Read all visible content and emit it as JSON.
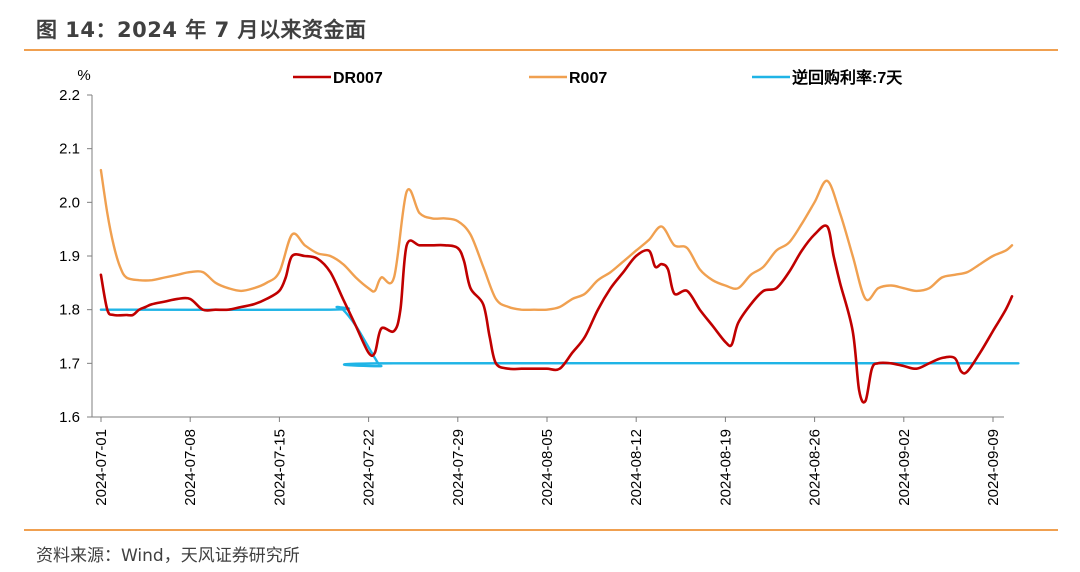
{
  "figure": {
    "title": "图 14：2024 年 7 月以来资金面",
    "source": "资料来源：Wind，天风证券研究所"
  },
  "chart_data": {
    "type": "line",
    "ylabel": "%",
    "ylim": [
      1.6,
      2.2
    ],
    "yticks": [
      "1.6",
      "1.7",
      "1.8",
      "1.9",
      "2.0",
      "2.1",
      "2.2"
    ],
    "xticks": [
      "2024-07-01",
      "2024-07-08",
      "2024-07-15",
      "2024-07-22",
      "2024-07-29",
      "2024-08-05",
      "2024-08-12",
      "2024-08-19",
      "2024-08-26",
      "2024-09-02",
      "2024-09-09"
    ],
    "x_range_days": [
      0,
      72
    ],
    "legend_position": "top",
    "series": [
      {
        "name": "DR007",
        "color": "#c00000",
        "points": [
          [
            0,
            1.865
          ],
          [
            0.5,
            1.8
          ],
          [
            1,
            1.79
          ],
          [
            2,
            1.79
          ],
          [
            2.5,
            1.79
          ],
          [
            3,
            1.8
          ],
          [
            3.5,
            1.805
          ],
          [
            4,
            1.81
          ],
          [
            5,
            1.815
          ],
          [
            6,
            1.82
          ],
          [
            7,
            1.82
          ],
          [
            8,
            1.8
          ],
          [
            9,
            1.8
          ],
          [
            10,
            1.8
          ],
          [
            11,
            1.805
          ],
          [
            12,
            1.81
          ],
          [
            13,
            1.82
          ],
          [
            14,
            1.835
          ],
          [
            14.5,
            1.86
          ],
          [
            15,
            1.9
          ],
          [
            16,
            1.9
          ],
          [
            17,
            1.895
          ],
          [
            18,
            1.87
          ],
          [
            19,
            1.82
          ],
          [
            20,
            1.77
          ],
          [
            21,
            1.72
          ],
          [
            21.5,
            1.72
          ],
          [
            22,
            1.765
          ],
          [
            23,
            1.76
          ],
          [
            23.5,
            1.8
          ],
          [
            24,
            1.92
          ],
          [
            25,
            1.92
          ],
          [
            26,
            1.92
          ],
          [
            27,
            1.92
          ],
          [
            28,
            1.915
          ],
          [
            28.5,
            1.89
          ],
          [
            29,
            1.84
          ],
          [
            30,
            1.81
          ],
          [
            30.5,
            1.75
          ],
          [
            31,
            1.7
          ],
          [
            32,
            1.69
          ],
          [
            33,
            1.69
          ],
          [
            34,
            1.69
          ],
          [
            35,
            1.69
          ],
          [
            36,
            1.69
          ],
          [
            37,
            1.72
          ],
          [
            38,
            1.75
          ],
          [
            39,
            1.8
          ],
          [
            40,
            1.84
          ],
          [
            41,
            1.87
          ],
          [
            42,
            1.9
          ],
          [
            43,
            1.91
          ],
          [
            43.5,
            1.88
          ],
          [
            44,
            1.885
          ],
          [
            44.5,
            1.875
          ],
          [
            45,
            1.83
          ],
          [
            46,
            1.835
          ],
          [
            47,
            1.8
          ],
          [
            48,
            1.77
          ],
          [
            49,
            1.74
          ],
          [
            49.5,
            1.735
          ],
          [
            50,
            1.775
          ],
          [
            51,
            1.81
          ],
          [
            52,
            1.835
          ],
          [
            53,
            1.84
          ],
          [
            54,
            1.87
          ],
          [
            55,
            1.91
          ],
          [
            56,
            1.94
          ],
          [
            57,
            1.955
          ],
          [
            57.5,
            1.9
          ],
          [
            58,
            1.85
          ],
          [
            59,
            1.76
          ],
          [
            59.5,
            1.65
          ],
          [
            60,
            1.63
          ],
          [
            60.5,
            1.69
          ],
          [
            61,
            1.7
          ],
          [
            62,
            1.7
          ],
          [
            63,
            1.695
          ],
          [
            64,
            1.69
          ],
          [
            65,
            1.7
          ],
          [
            66,
            1.71
          ],
          [
            67,
            1.71
          ],
          [
            67.5,
            1.685
          ],
          [
            68,
            1.685
          ],
          [
            69,
            1.72
          ],
          [
            70,
            1.76
          ],
          [
            71,
            1.8
          ],
          [
            71.5,
            1.825
          ]
        ]
      },
      {
        "name": "R007",
        "color": "#f0a050",
        "points": [
          [
            0,
            2.06
          ],
          [
            0.5,
            1.98
          ],
          [
            1,
            1.92
          ],
          [
            1.5,
            1.88
          ],
          [
            2,
            1.86
          ],
          [
            3,
            1.855
          ],
          [
            4,
            1.855
          ],
          [
            5,
            1.86
          ],
          [
            6,
            1.865
          ],
          [
            7,
            1.87
          ],
          [
            8,
            1.87
          ],
          [
            9,
            1.85
          ],
          [
            10,
            1.84
          ],
          [
            11,
            1.835
          ],
          [
            12,
            1.84
          ],
          [
            13,
            1.85
          ],
          [
            14,
            1.87
          ],
          [
            15,
            1.94
          ],
          [
            16,
            1.92
          ],
          [
            17,
            1.905
          ],
          [
            18,
            1.9
          ],
          [
            19,
            1.885
          ],
          [
            20,
            1.86
          ],
          [
            21,
            1.84
          ],
          [
            21.5,
            1.835
          ],
          [
            22,
            1.86
          ],
          [
            23,
            1.86
          ],
          [
            24,
            2.02
          ],
          [
            25,
            1.98
          ],
          [
            26,
            1.97
          ],
          [
            27,
            1.97
          ],
          [
            28,
            1.965
          ],
          [
            29,
            1.94
          ],
          [
            30,
            1.88
          ],
          [
            31,
            1.82
          ],
          [
            32,
            1.805
          ],
          [
            33,
            1.8
          ],
          [
            34,
            1.8
          ],
          [
            35,
            1.8
          ],
          [
            36,
            1.805
          ],
          [
            37,
            1.82
          ],
          [
            38,
            1.83
          ],
          [
            39,
            1.855
          ],
          [
            40,
            1.87
          ],
          [
            41,
            1.89
          ],
          [
            42,
            1.91
          ],
          [
            43,
            1.93
          ],
          [
            44,
            1.955
          ],
          [
            45,
            1.92
          ],
          [
            46,
            1.915
          ],
          [
            47,
            1.875
          ],
          [
            48,
            1.855
          ],
          [
            49,
            1.845
          ],
          [
            50,
            1.84
          ],
          [
            51,
            1.865
          ],
          [
            52,
            1.88
          ],
          [
            53,
            1.91
          ],
          [
            54,
            1.925
          ],
          [
            55,
            1.96
          ],
          [
            56,
            2.0
          ],
          [
            57,
            2.04
          ],
          [
            58,
            1.98
          ],
          [
            59,
            1.9
          ],
          [
            60,
            1.82
          ],
          [
            61,
            1.84
          ],
          [
            62,
            1.845
          ],
          [
            63,
            1.84
          ],
          [
            64,
            1.835
          ],
          [
            65,
            1.84
          ],
          [
            66,
            1.86
          ],
          [
            67,
            1.865
          ],
          [
            68,
            1.87
          ],
          [
            69,
            1.885
          ],
          [
            70,
            1.9
          ],
          [
            71,
            1.91
          ],
          [
            71.5,
            1.92
          ]
        ]
      },
      {
        "name": "逆回购利率:7天",
        "color": "#1fb4e6",
        "points": [
          [
            0,
            1.8
          ],
          [
            18,
            1.8
          ],
          [
            18.5,
            1.805
          ],
          [
            19,
            1.8
          ],
          [
            20,
            1.77
          ],
          [
            21,
            1.73
          ],
          [
            21.5,
            1.71
          ],
          [
            22,
            1.695
          ],
          [
            23,
            1.7
          ],
          [
            72,
            1.7
          ]
        ]
      }
    ]
  }
}
